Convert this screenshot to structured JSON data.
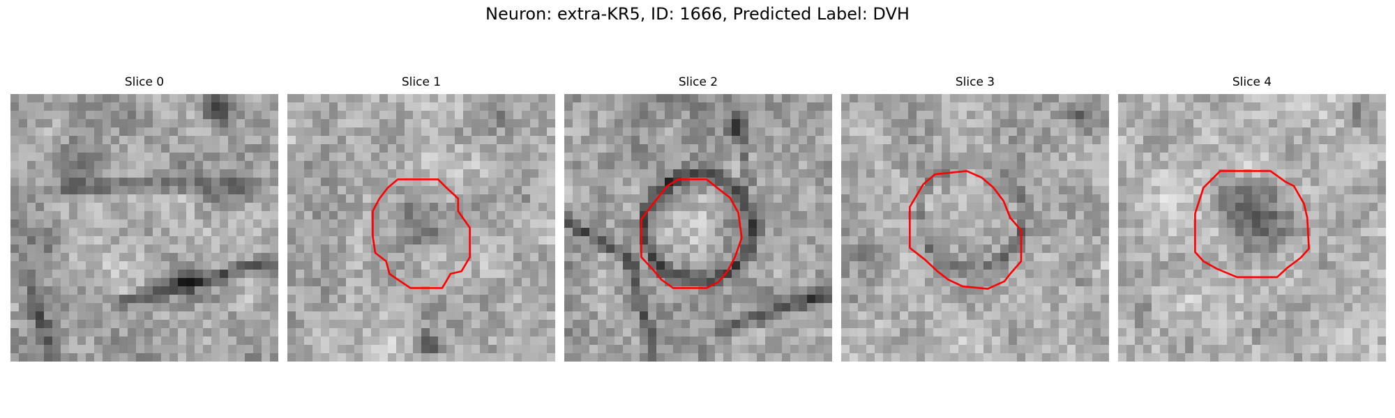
{
  "figure": {
    "title": "Neuron: extra-KR5, ID: 1666, Predicted Label: DVH",
    "slices": [
      {
        "label": "Slice 0",
        "has_outline": false
      },
      {
        "label": "Slice 1",
        "has_outline": true
      },
      {
        "label": "Slice 2",
        "has_outline": true
      },
      {
        "label": "Slice 3",
        "has_outline": true
      },
      {
        "label": "Slice 4",
        "has_outline": true
      }
    ],
    "outline_color": "#ff0000",
    "colormap": "grayscale"
  }
}
